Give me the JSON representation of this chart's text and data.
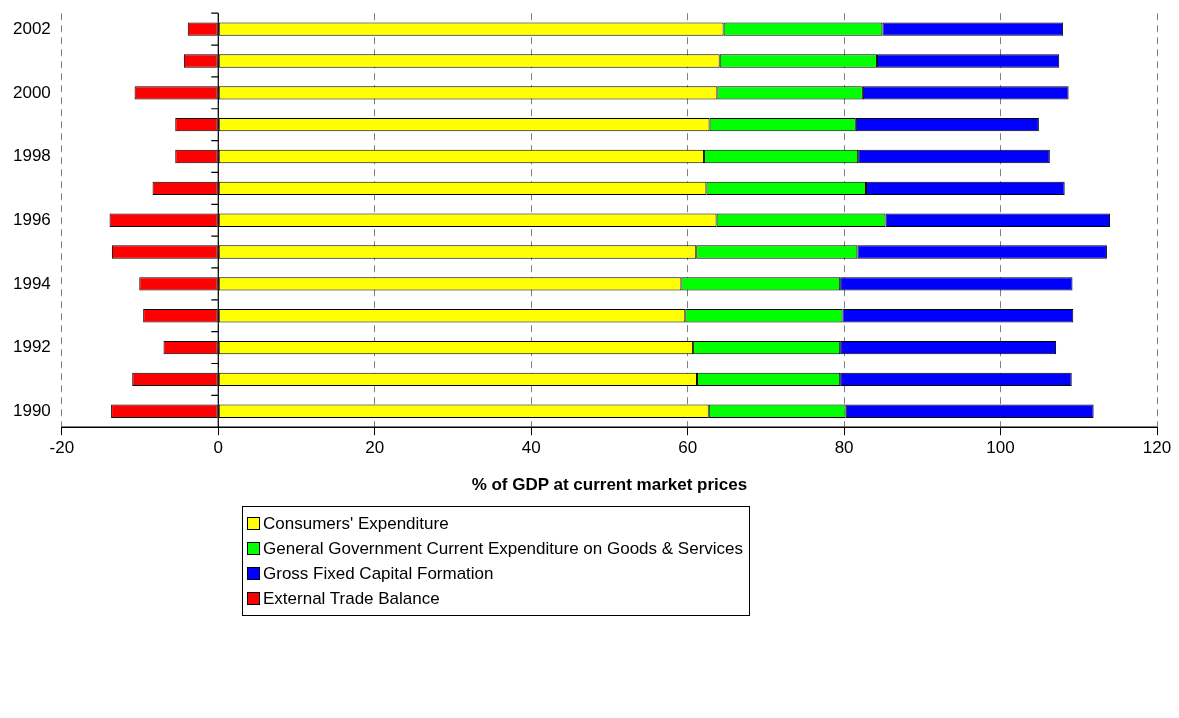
{
  "chart_data": {
    "type": "bar",
    "orientation": "horizontal",
    "stacked": true,
    "xlabel": "% of GDP at current market prices",
    "categories": [
      "2002",
      null,
      "2000",
      null,
      "1998",
      null,
      "1996",
      null,
      "1994",
      null,
      "1992",
      null,
      "1990"
    ],
    "series": [
      {
        "name": "Consumers' Expenditure",
        "color": "#ffff00",
        "values": [
          64.6,
          64.1,
          63.8,
          62.8,
          62.1,
          62.4,
          63.7,
          61.1,
          59.2,
          59.7,
          60.7,
          61.2,
          62.7
        ]
      },
      {
        "name": "General Government Current Expenditure on Goods & Services",
        "color": "#00ff00",
        "values": [
          20.3,
          20.1,
          18.6,
          18.7,
          19.7,
          20.4,
          21.6,
          20.6,
          20.3,
          20.1,
          18.8,
          18.3,
          17.5
        ]
      },
      {
        "name": "Gross Fixed Capital Formation",
        "color": "#0000ff",
        "values": [
          23.1,
          23.3,
          26.3,
          23.4,
          24.5,
          25.4,
          28.7,
          31.9,
          29.7,
          29.5,
          27.6,
          29.6,
          31.7
        ]
      },
      {
        "name": "External Trade Balance",
        "color": "#ff0000",
        "values": [
          -3.9,
          -4.4,
          -10.7,
          -5.5,
          -5.5,
          -8.4,
          -13.9,
          -13.6,
          -10.1,
          -9.6,
          -7.0,
          -11.0,
          -13.7
        ]
      }
    ],
    "xlim": [
      -20,
      120
    ],
    "xticks": [
      -20,
      0,
      20,
      40,
      60,
      80,
      100,
      120
    ],
    "grid": "x",
    "legend": "bottom"
  }
}
